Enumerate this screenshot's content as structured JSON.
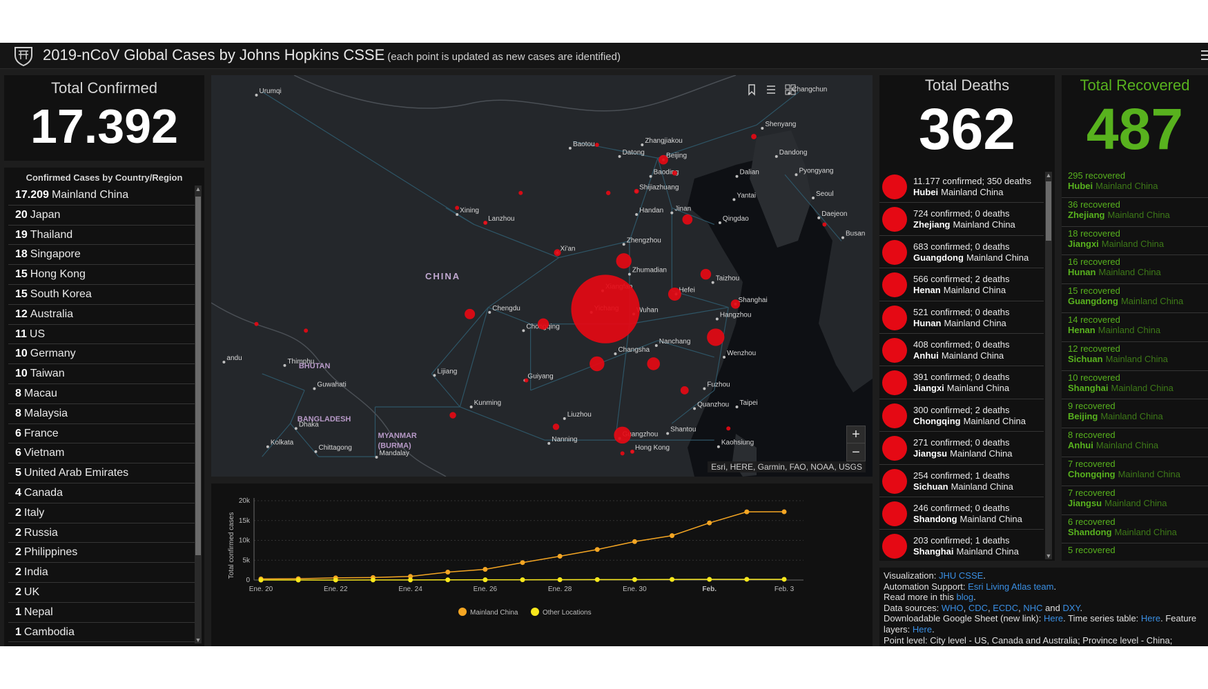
{
  "header": {
    "title": "2019-nCoV Global Cases by Johns Hopkins CSSE",
    "subtitle": "(each point is updated as new cases are identified)"
  },
  "total_confirmed": {
    "label": "Total Confirmed",
    "value": "17.392"
  },
  "country_list": {
    "heading": "Confirmed Cases by Country/Region",
    "items": [
      {
        "count": "17.209",
        "name": "Mainland China"
      },
      {
        "count": "20",
        "name": "Japan"
      },
      {
        "count": "19",
        "name": "Thailand"
      },
      {
        "count": "18",
        "name": "Singapore"
      },
      {
        "count": "15",
        "name": "Hong Kong"
      },
      {
        "count": "15",
        "name": "South Korea"
      },
      {
        "count": "12",
        "name": "Australia"
      },
      {
        "count": "11",
        "name": "US"
      },
      {
        "count": "10",
        "name": "Germany"
      },
      {
        "count": "10",
        "name": "Taiwan"
      },
      {
        "count": "8",
        "name": "Macau"
      },
      {
        "count": "8",
        "name": "Malaysia"
      },
      {
        "count": "6",
        "name": "France"
      },
      {
        "count": "6",
        "name": "Vietnam"
      },
      {
        "count": "5",
        "name": "United Arab Emirates"
      },
      {
        "count": "4",
        "name": "Canada"
      },
      {
        "count": "2",
        "name": "Italy"
      },
      {
        "count": "2",
        "name": "Russia"
      },
      {
        "count": "2",
        "name": "Philippines"
      },
      {
        "count": "2",
        "name": "India"
      },
      {
        "count": "2",
        "name": "UK"
      },
      {
        "count": "1",
        "name": "Nepal"
      },
      {
        "count": "1",
        "name": "Cambodia"
      }
    ]
  },
  "map": {
    "attribution": "Esri, HERE, Garmin, FAO, NOAA, USGS",
    "country_label": "CHINA",
    "zoom_in": "+",
    "zoom_out": "−",
    "tools": [
      "bookmark-icon",
      "list-icon",
      "grid-icon"
    ],
    "cities": [
      {
        "name": "Urumqi",
        "lon": 87.6,
        "lat": 43.8
      },
      {
        "name": "Changchun",
        "lon": 125.3,
        "lat": 43.9
      },
      {
        "name": "Shenyang",
        "lon": 123.4,
        "lat": 41.8
      },
      {
        "name": "Baotou",
        "lon": 109.8,
        "lat": 40.6
      },
      {
        "name": "Zhangjiakou",
        "lon": 114.9,
        "lat": 40.8
      },
      {
        "name": "Datong",
        "lon": 113.3,
        "lat": 40.1
      },
      {
        "name": "Beijing",
        "lon": 116.4,
        "lat": 39.9
      },
      {
        "name": "Baoding",
        "lon": 115.5,
        "lat": 38.9
      },
      {
        "name": "Dalian",
        "lon": 121.6,
        "lat": 38.9
      },
      {
        "name": "Dandong",
        "lon": 124.4,
        "lat": 40.1
      },
      {
        "name": "Pyongyang",
        "lon": 125.8,
        "lat": 39.0
      },
      {
        "name": "Shijiazhuang",
        "lon": 114.5,
        "lat": 38.0
      },
      {
        "name": "Yantai",
        "lon": 121.4,
        "lat": 37.5
      },
      {
        "name": "Seoul",
        "lon": 127.0,
        "lat": 37.6
      },
      {
        "name": "Xining",
        "lon": 101.8,
        "lat": 36.6
      },
      {
        "name": "Lanzhou",
        "lon": 103.8,
        "lat": 36.1
      },
      {
        "name": "Handan",
        "lon": 114.5,
        "lat": 36.6
      },
      {
        "name": "Jinan",
        "lon": 117.0,
        "lat": 36.7
      },
      {
        "name": "Qingdao",
        "lon": 120.4,
        "lat": 36.1
      },
      {
        "name": "Daejeon",
        "lon": 127.4,
        "lat": 36.4
      },
      {
        "name": "Busan",
        "lon": 129.1,
        "lat": 35.2
      },
      {
        "name": "Xi'an",
        "lon": 108.9,
        "lat": 34.3
      },
      {
        "name": "Zhengzhou",
        "lon": 113.6,
        "lat": 34.8
      },
      {
        "name": "Zhumadian",
        "lon": 114.0,
        "lat": 33.0
      },
      {
        "name": "Taizhou",
        "lon": 119.9,
        "lat": 32.5
      },
      {
        "name": "Xiangfan",
        "lon": 112.1,
        "lat": 32.0
      },
      {
        "name": "Hefei",
        "lon": 117.3,
        "lat": 31.8
      },
      {
        "name": "Shanghai",
        "lon": 121.5,
        "lat": 31.2
      },
      {
        "name": "Chengdu",
        "lon": 104.1,
        "lat": 30.7
      },
      {
        "name": "Yichang",
        "lon": 111.3,
        "lat": 30.7
      },
      {
        "name": "Wuhan",
        "lon": 114.3,
        "lat": 30.6
      },
      {
        "name": "Hangzhou",
        "lon": 120.2,
        "lat": 30.3
      },
      {
        "name": "Chongqing",
        "lon": 106.5,
        "lat": 29.6
      },
      {
        "name": "Nanchang",
        "lon": 115.9,
        "lat": 28.7
      },
      {
        "name": "Wenzhou",
        "lon": 120.7,
        "lat": 28.0
      },
      {
        "name": "Changsha",
        "lon": 113.0,
        "lat": 28.2
      },
      {
        "name": "Thimphu",
        "lon": 89.6,
        "lat": 27.5
      },
      {
        "name": "BHUTAN",
        "lon": 90.4,
        "lat": 27.2
      },
      {
        "name": "Lijiang",
        "lon": 100.2,
        "lat": 26.9
      },
      {
        "name": "Guwahati",
        "lon": 91.7,
        "lat": 26.1
      },
      {
        "name": "Guiyang",
        "lon": 106.6,
        "lat": 26.6
      },
      {
        "name": "Fuzhou",
        "lon": 119.3,
        "lat": 26.1
      },
      {
        "name": "Quanzhou",
        "lon": 118.6,
        "lat": 24.9
      },
      {
        "name": "Kunming",
        "lon": 102.8,
        "lat": 25.0
      },
      {
        "name": "Taipei",
        "lon": 121.6,
        "lat": 25.0
      },
      {
        "name": "Liuzhou",
        "lon": 109.4,
        "lat": 24.3
      },
      {
        "name": "BANGLADESH",
        "lon": 90.3,
        "lat": 24.0
      },
      {
        "name": "Dhaka",
        "lon": 90.4,
        "lat": 23.7
      },
      {
        "name": "MYANMAR",
        "lon": 96.0,
        "lat": 23.0
      },
      {
        "name": "(BURMA)",
        "lon": 96.0,
        "lat": 22.4
      },
      {
        "name": "Shantou",
        "lon": 116.7,
        "lat": 23.4
      },
      {
        "name": "Guangzhou",
        "lon": 113.3,
        "lat": 23.1
      },
      {
        "name": "Nanning",
        "lon": 108.3,
        "lat": 22.8
      },
      {
        "name": "Kaohsiung",
        "lon": 120.3,
        "lat": 22.6
      },
      {
        "name": "Hong Kong",
        "lon": 114.2,
        "lat": 22.3
      },
      {
        "name": "Kolkata",
        "lon": 88.4,
        "lat": 22.6
      },
      {
        "name": "Chittagong",
        "lon": 91.8,
        "lat": 22.3
      },
      {
        "name": "Mandalay",
        "lon": 96.1,
        "lat": 21.97
      },
      {
        "name": "andu",
        "lon": 85.3,
        "lat": 27.7
      }
    ],
    "bubbles": [
      {
        "lon": 112.3,
        "lat": 30.9,
        "cases": 11177
      },
      {
        "lon": 120.1,
        "lat": 29.2,
        "cases": 724
      },
      {
        "lon": 113.5,
        "lat": 23.3,
        "cases": 683
      },
      {
        "lon": 113.6,
        "lat": 33.8,
        "cases": 566
      },
      {
        "lon": 111.7,
        "lat": 27.6,
        "cases": 521
      },
      {
        "lon": 117.2,
        "lat": 31.8,
        "cases": 408
      },
      {
        "lon": 115.7,
        "lat": 27.6,
        "cases": 391
      },
      {
        "lon": 107.9,
        "lat": 30.0,
        "cases": 300
      },
      {
        "lon": 119.4,
        "lat": 33.0,
        "cases": 271
      },
      {
        "lon": 102.7,
        "lat": 30.6,
        "cases": 254
      },
      {
        "lon": 118.1,
        "lat": 36.3,
        "cases": 246
      },
      {
        "lon": 121.5,
        "lat": 31.2,
        "cases": 203
      },
      {
        "lon": 116.4,
        "lat": 39.9,
        "cases": 212
      },
      {
        "lon": 117.9,
        "lat": 26.0,
        "cases": 159
      },
      {
        "lon": 108.8,
        "lat": 23.8,
        "cases": 100
      },
      {
        "lon": 101.5,
        "lat": 24.5,
        "cases": 100
      },
      {
        "lon": 108.9,
        "lat": 34.3,
        "cases": 116
      },
      {
        "lon": 122.8,
        "lat": 41.3,
        "cases": 69
      },
      {
        "lon": 114.5,
        "lat": 38.0,
        "cases": 55
      },
      {
        "lon": 117.2,
        "lat": 39.1,
        "cases": 60
      },
      {
        "lon": 112.5,
        "lat": 37.9,
        "cases": 47
      },
      {
        "lon": 106.7,
        "lat": 26.6,
        "cases": 29
      },
      {
        "lon": 103.8,
        "lat": 36.1,
        "cases": 29
      },
      {
        "lon": 101.8,
        "lat": 37.0,
        "cases": 9
      },
      {
        "lon": 126.6,
        "lat": 45.8,
        "cases": 38
      },
      {
        "lon": 111.7,
        "lat": 40.8,
        "cases": 18
      },
      {
        "lon": 114.2,
        "lat": 22.3,
        "cases": 15
      },
      {
        "lon": 113.5,
        "lat": 22.2,
        "cases": 8
      },
      {
        "lon": 121.0,
        "lat": 23.7,
        "cases": 10
      },
      {
        "lon": 127.8,
        "lat": 36.0,
        "cases": 15
      },
      {
        "lon": 91.1,
        "lat": 29.6,
        "cases": 1
      },
      {
        "lon": 87.6,
        "lat": 30.0,
        "cases": 1
      },
      {
        "lon": 106.3,
        "lat": 37.9,
        "cases": 1
      }
    ]
  },
  "chart_data": {
    "type": "line",
    "x": [
      "Ene. 20",
      "Ene. 21",
      "Ene. 22",
      "Ene. 23",
      "Ene. 24",
      "Ene. 25",
      "Ene. 26",
      "Ene. 27",
      "Ene. 28",
      "Ene. 29",
      "Ene. 30",
      "Ene. 31",
      "Feb.",
      "Feb. 2",
      "Feb. 3"
    ],
    "tick_labels": [
      "Ene. 20",
      "Ene. 22",
      "Ene. 24",
      "Ene. 26",
      "Ene. 28",
      "Ene. 30",
      "Feb.",
      "Feb. 3"
    ],
    "series": [
      {
        "name": "Mainland China",
        "color": "#f5a623",
        "values": [
          278,
          326,
          547,
          639,
          916,
          2000,
          2700,
          4400,
          6000,
          7700,
          9700,
          11200,
          14400,
          17200,
          17209
        ]
      },
      {
        "name": "Other Locations",
        "color": "#f8e71c",
        "values": [
          4,
          6,
          8,
          14,
          25,
          40,
          57,
          64,
          87,
          105,
          118,
          153,
          173,
          183,
          183
        ]
      }
    ],
    "ylabel": "Total confirmed cases",
    "y_ticks": [
      "0",
      "5k",
      "10k",
      "15k",
      "20k"
    ],
    "ylim": [
      0,
      20000
    ],
    "grid": true,
    "legend": "bottom"
  },
  "total_deaths": {
    "label": "Total Deaths",
    "value": "362"
  },
  "deaths_list": [
    {
      "stats": "11.177 confirmed; 350 deaths",
      "province": "Hubei",
      "region": "Mainland China"
    },
    {
      "stats": "724 confirmed; 0 deaths",
      "province": "Zhejiang",
      "region": "Mainland China"
    },
    {
      "stats": "683 confirmed; 0 deaths",
      "province": "Guangdong",
      "region": "Mainland China"
    },
    {
      "stats": "566 confirmed; 2 deaths",
      "province": "Henan",
      "region": "Mainland China"
    },
    {
      "stats": "521 confirmed; 0 deaths",
      "province": "Hunan",
      "region": "Mainland China"
    },
    {
      "stats": "408 confirmed; 0 deaths",
      "province": "Anhui",
      "region": "Mainland China"
    },
    {
      "stats": "391 confirmed; 0 deaths",
      "province": "Jiangxi",
      "region": "Mainland China"
    },
    {
      "stats": "300 confirmed; 2 deaths",
      "province": "Chongqing",
      "region": "Mainland China"
    },
    {
      "stats": "271 confirmed; 0 deaths",
      "province": "Jiangsu",
      "region": "Mainland China"
    },
    {
      "stats": "254 confirmed; 1 deaths",
      "province": "Sichuan",
      "region": "Mainland China"
    },
    {
      "stats": "246 confirmed; 0 deaths",
      "province": "Shandong",
      "region": "Mainland China"
    },
    {
      "stats": "203 confirmed; 1 deaths",
      "province": "Shanghai",
      "region": "Mainland China"
    }
  ],
  "total_recovered": {
    "label": "Total Recovered",
    "value": "487"
  },
  "recovered_list": [
    {
      "stats": "295 recovered",
      "province": "Hubei",
      "region": "Mainland China"
    },
    {
      "stats": "36 recovered",
      "province": "Zhejiang",
      "region": "Mainland China"
    },
    {
      "stats": "18 recovered",
      "province": "Jiangxi",
      "region": "Mainland China"
    },
    {
      "stats": "16 recovered",
      "province": "Hunan",
      "region": "Mainland China"
    },
    {
      "stats": "15 recovered",
      "province": "Guangdong",
      "region": "Mainland China"
    },
    {
      "stats": "14 recovered",
      "province": "Henan",
      "region": "Mainland China"
    },
    {
      "stats": "12 recovered",
      "province": "Sichuan",
      "region": "Mainland China"
    },
    {
      "stats": "10 recovered",
      "province": "Shanghai",
      "region": "Mainland China"
    },
    {
      "stats": "9 recovered",
      "province": "Beijing",
      "region": "Mainland China"
    },
    {
      "stats": "8 recovered",
      "province": "Anhui",
      "region": "Mainland China"
    },
    {
      "stats": "7 recovered",
      "province": "Chongqing",
      "region": "Mainland China"
    },
    {
      "stats": "7 recovered",
      "province": "Jiangsu",
      "region": "Mainland China"
    },
    {
      "stats": "6 recovered",
      "province": "Shandong",
      "region": "Mainland China"
    },
    {
      "stats": "5 recovered",
      "province": "",
      "region": ""
    }
  ],
  "info": {
    "visualization_label": "Visualization:",
    "visualization_link": "JHU CSSE",
    "automation_label": "Automation Support:",
    "automation_link": "Esri Living Atlas team",
    "readmore_label": "Read more in this",
    "readmore_link": "blog",
    "sources_label": "Data sources:",
    "src1": "WHO",
    "src2": "CDC",
    "src3": "ECDC",
    "src4": "NHC",
    "src_and": "and",
    "src5": "DXY",
    "sheet_label": "Downloadable Google Sheet (new link):",
    "sheet_link": "Here",
    "timeseries_label": "Time series table:",
    "timeseries_link": "Here",
    "feature_label": "Feature layers:",
    "feature_link": "Here",
    "point_level": "Point level: City level - US, Canada and Australia; Province level - China;"
  },
  "colors": {
    "bubble": "#e50914",
    "recovered": "#58b21e",
    "link": "#3a8fe3",
    "mainland_line": "#f5a623",
    "other_line": "#f8e71c"
  }
}
